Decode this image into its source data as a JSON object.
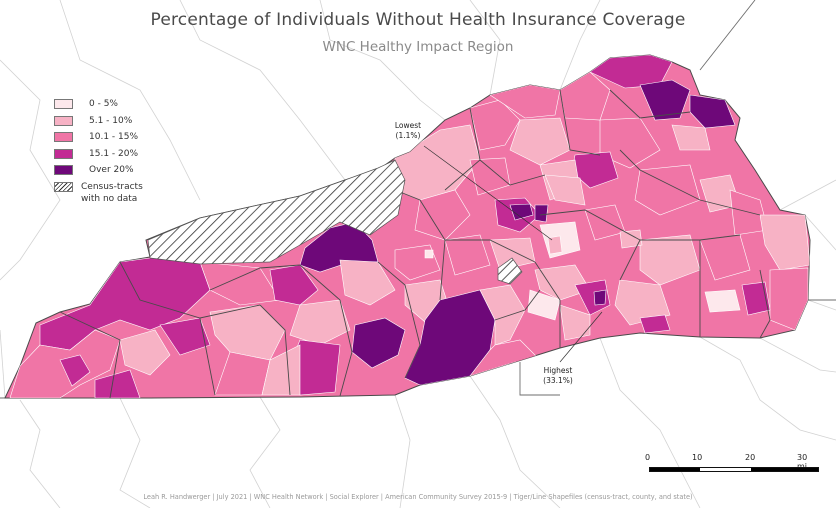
{
  "title": "Percentage of Individuals Without Health Insurance Coverage",
  "subtitle": "WNC Healthy Impact Region",
  "colors": {
    "c0_5": "#fde8ec",
    "c5_10": "#f7b2c5",
    "c10_15": "#f075a6",
    "c15_20": "#c22b94",
    "c20": "#6e0879",
    "background": "#ffffff",
    "boundary": "#d2d2d2",
    "county_line": "#4a4a4a"
  },
  "legend": {
    "items": [
      {
        "label": "0 - 5%",
        "color": "#fde8ec"
      },
      {
        "label": "5.1 - 10%",
        "color": "#f7b2c5"
      },
      {
        "label": "10.1 - 15%",
        "color": "#f075a6"
      },
      {
        "label": "15.1 - 20%",
        "color": "#c22b94"
      },
      {
        "label": "Over 20%",
        "color": "#6e0879"
      }
    ],
    "nodata_line1": "Census-tracts",
    "nodata_line2": "with no data"
  },
  "callouts": {
    "lowest_label": "Lowest",
    "lowest_value": "(1.1%)",
    "highest_label": "Highest",
    "highest_value": "(33.1%)"
  },
  "scale": {
    "ticks": [
      "0",
      "10",
      "20",
      "30 mi"
    ],
    "segment_colors": [
      "#000000",
      "#ffffff",
      "#000000",
      "#ffffff",
      "#000000"
    ]
  },
  "credit": "Leah R. Handwerger | July 2021 | WNC Health Network | Social Explorer | American Community Survey 2015-9 | Tiger/Line Shapefiles (census-tract, county, and state)"
}
